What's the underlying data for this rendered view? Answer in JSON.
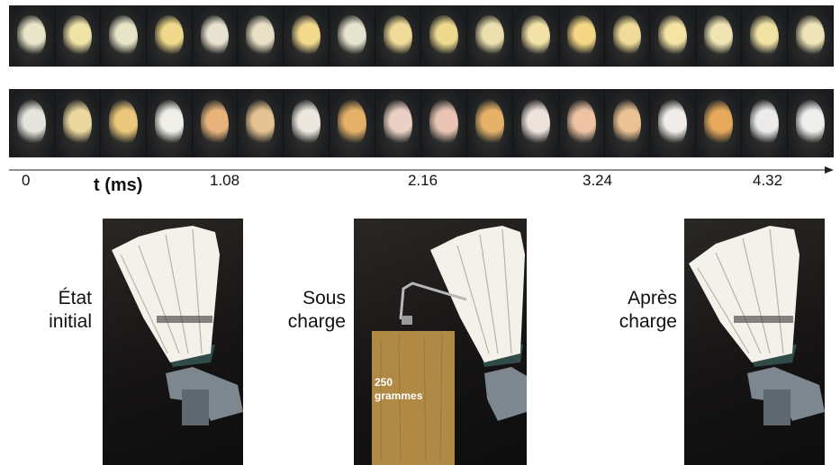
{
  "timeline": {
    "axis_title": "t (ms)",
    "ticks": [
      "0",
      "1.08",
      "2.16",
      "3.24",
      "4.32"
    ],
    "row1_colors": [
      "#e9e6c9",
      "#efe3a6",
      "#e8e4c8",
      "#f0d98a",
      "#e9e2d0",
      "#e8dfc5",
      "#f2d98c",
      "#e6e3cf",
      "#f0dc98",
      "#efd98e",
      "#ecdfae",
      "#f3e2a8",
      "#f4d684",
      "#f1db98",
      "#f4e3a2",
      "#f0e4b4",
      "#f2e2a4",
      "#efe4b8"
    ],
    "row2_colors": [
      "#e6e4dc",
      "#ecd7a0",
      "#eac77a",
      "#f0eee8",
      "#e8b37a",
      "#e6c290",
      "#ece8e0",
      "#e5b068",
      "#ead1c4",
      "#e9c4b4",
      "#e6b268",
      "#eee2dc",
      "#edc3a4",
      "#ebc294",
      "#f0ece8",
      "#e6a85a",
      "#ecebea",
      "#eeeeec"
    ]
  },
  "panels": [
    {
      "caption_line1": "État",
      "caption_line2": "initial"
    },
    {
      "caption_line1": "Sous",
      "caption_line2": "charge",
      "weight_line1": "250",
      "weight_line2": "grammes"
    },
    {
      "caption_line1": "Après",
      "caption_line2": "charge"
    }
  ],
  "colors": {
    "feather": "#f3f1ea",
    "cork_holder": "#7d8790",
    "weight_block": "#b08a45",
    "photo_background": "#141212"
  }
}
